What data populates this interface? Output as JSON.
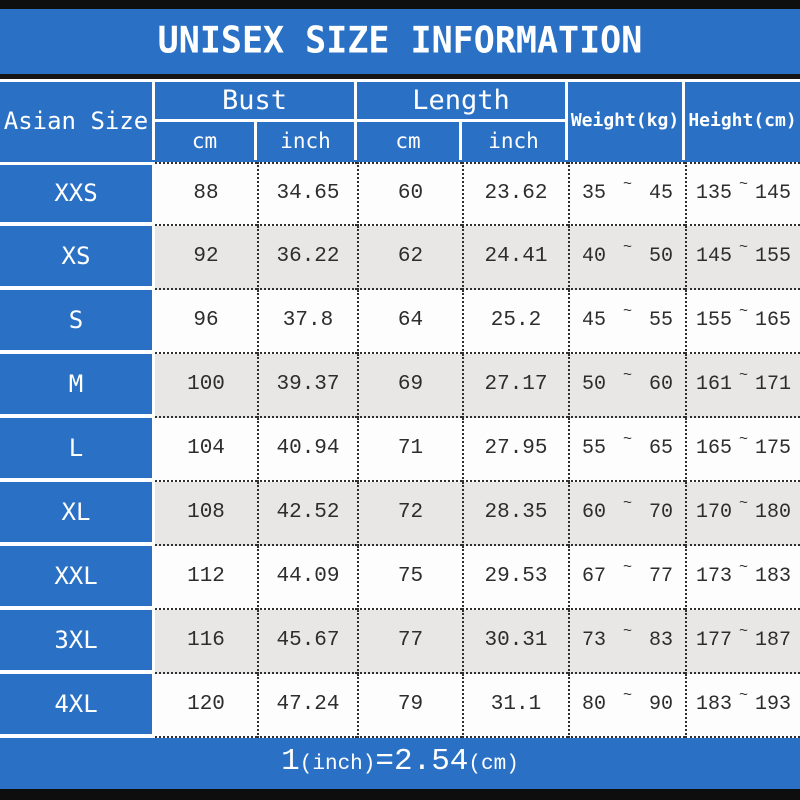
{
  "title": "UNISEX SIZE INFORMATION",
  "colors": {
    "accent_blue": "#2a71c5",
    "alt_row_gray": "#e9e6e6",
    "bar_black": "#0e0e0e",
    "text_dark": "#2d2d2d",
    "text_white": "#ffffff"
  },
  "table": {
    "size_col_header": "Asian Size",
    "bust_group_label": "Bust",
    "length_group_label": "Length",
    "weight_header": "Weight(kg)",
    "height_header": "Height(cm)",
    "sub_cm": "cm",
    "sub_inch": "inch",
    "range_separator": "~",
    "rows": [
      {
        "size": "XXS",
        "bust_cm": "88",
        "bust_inch": "34.65",
        "length_cm": "60",
        "length_inch": "23.62",
        "weight_low": "35",
        "weight_high": "45",
        "height_low": "135",
        "height_high": "145"
      },
      {
        "size": "XS",
        "bust_cm": "92",
        "bust_inch": "36.22",
        "length_cm": "62",
        "length_inch": "24.41",
        "weight_low": "40",
        "weight_high": "50",
        "height_low": "145",
        "height_high": "155"
      },
      {
        "size": "S",
        "bust_cm": "96",
        "bust_inch": "37.8",
        "length_cm": "64",
        "length_inch": "25.2",
        "weight_low": "45",
        "weight_high": "55",
        "height_low": "155",
        "height_high": "165"
      },
      {
        "size": "M",
        "bust_cm": "100",
        "bust_inch": "39.37",
        "length_cm": "69",
        "length_inch": "27.17",
        "weight_low": "50",
        "weight_high": "60",
        "height_low": "161",
        "height_high": "171"
      },
      {
        "size": "L",
        "bust_cm": "104",
        "bust_inch": "40.94",
        "length_cm": "71",
        "length_inch": "27.95",
        "weight_low": "55",
        "weight_high": "65",
        "height_low": "165",
        "height_high": "175"
      },
      {
        "size": "XL",
        "bust_cm": "108",
        "bust_inch": "42.52",
        "length_cm": "72",
        "length_inch": "28.35",
        "weight_low": "60",
        "weight_high": "70",
        "height_low": "170",
        "height_high": "180"
      },
      {
        "size": "XXL",
        "bust_cm": "112",
        "bust_inch": "44.09",
        "length_cm": "75",
        "length_inch": "29.53",
        "weight_low": "67",
        "weight_high": "77",
        "height_low": "173",
        "height_high": "183"
      },
      {
        "size": "3XL",
        "bust_cm": "116",
        "bust_inch": "45.67",
        "length_cm": "77",
        "length_inch": "30.31",
        "weight_low": "73",
        "weight_high": "83",
        "height_low": "177",
        "height_high": "187"
      },
      {
        "size": "4XL",
        "bust_cm": "120",
        "bust_inch": "47.24",
        "length_cm": "79",
        "length_inch": "31.1",
        "weight_low": "80",
        "weight_high": "90",
        "height_low": "183",
        "height_high": "193"
      }
    ]
  },
  "footer": {
    "note": "1(inch)=2.54(cm)",
    "parts": [
      {
        "text": "1"
      },
      {
        "text": "(inch)"
      },
      {
        "text": "=2.54"
      },
      {
        "text": "(cm)"
      }
    ]
  },
  "chart_data": {
    "type": "table",
    "title": "UNISEX SIZE INFORMATION",
    "columns": [
      "Asian Size",
      "Bust cm",
      "Bust inch",
      "Length cm",
      "Length inch",
      "Weight(kg)",
      "Height(cm)"
    ],
    "rows": [
      [
        "XXS",
        88,
        34.65,
        60,
        23.62,
        "35~45",
        "135~145"
      ],
      [
        "XS",
        92,
        36.22,
        62,
        24.41,
        "40~50",
        "145~155"
      ],
      [
        "S",
        96,
        37.8,
        64,
        25.2,
        "45~55",
        "155~165"
      ],
      [
        "M",
        100,
        39.37,
        69,
        27.17,
        "50~60",
        "161~171"
      ],
      [
        "L",
        104,
        40.94,
        71,
        27.95,
        "55~65",
        "165~175"
      ],
      [
        "XL",
        108,
        42.52,
        72,
        28.35,
        "60~70",
        "170~180"
      ],
      [
        "XXL",
        112,
        44.09,
        75,
        29.53,
        "67~77",
        "173~183"
      ],
      [
        "3XL",
        116,
        45.67,
        77,
        30.31,
        "73~83",
        "177~187"
      ],
      [
        "4XL",
        120,
        47.24,
        79,
        31.1,
        "80~90",
        "183~193"
      ]
    ],
    "note": "1(inch)=2.54(cm)"
  }
}
